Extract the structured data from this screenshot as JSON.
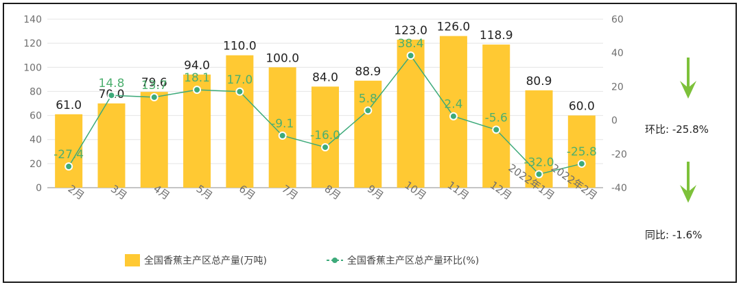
{
  "chart_data": {
    "type": "bar",
    "categories": [
      "2月",
      "3月",
      "4月",
      "5月",
      "6月",
      "7月",
      "8月",
      "9月",
      "10月",
      "11月",
      "12月",
      "2022年1月",
      "2022年2月"
    ],
    "series": [
      {
        "name": "全国香蕉主产区总产量(万吨)",
        "type": "bar",
        "axis": "left",
        "values": [
          61.0,
          70.0,
          79.6,
          94.0,
          110.0,
          100.0,
          84.0,
          88.9,
          123.0,
          126.0,
          118.9,
          80.9,
          60.0
        ],
        "labels": [
          "61.0",
          "70.0",
          "79.6",
          "94.0",
          "110.0",
          "100.0",
          "84.0",
          "88.9",
          "123.0",
          "126.0",
          "118.9",
          "80.9",
          "60.0"
        ]
      },
      {
        "name": "全国香蕉主产区总产量环比(%)",
        "type": "line",
        "axis": "right",
        "values": [
          -27.4,
          14.8,
          13.7,
          18.1,
          17.0,
          -9.1,
          -16.0,
          5.8,
          38.4,
          2.4,
          -5.6,
          -32.0,
          -25.8
        ],
        "labels": [
          "-27.4",
          "14.8",
          "13.7",
          "18.1",
          "17.0",
          "-9.1",
          "-16.0",
          "5.8",
          "38.4",
          "2.4",
          "-5.6",
          "-32.0",
          "-25.8"
        ]
      }
    ],
    "ylim_left": [
      0,
      140
    ],
    "yticks_left": [
      0,
      20,
      40,
      60,
      80,
      100,
      120,
      140
    ],
    "ylim_right": [
      -40,
      60
    ],
    "yticks_right": [
      -40,
      -20,
      0,
      20,
      40,
      60
    ],
    "grid": true,
    "legend_position": "bottom-center",
    "colors": {
      "bar": "#FFC933",
      "line": "#3DAA7A",
      "line_label": "#4CAF6E",
      "grid": "#E4E4E4",
      "axis_text": "#6E6E6E",
      "arrow": "#7DC13A"
    }
  },
  "side_panel": {
    "mom_label": "环比:",
    "mom_value": "-25.8%",
    "yoy_label": "同比:",
    "yoy_value": "-1.6%",
    "mom_arrow_icon": "arrow-down-icon",
    "yoy_arrow_icon": "arrow-down-icon"
  }
}
